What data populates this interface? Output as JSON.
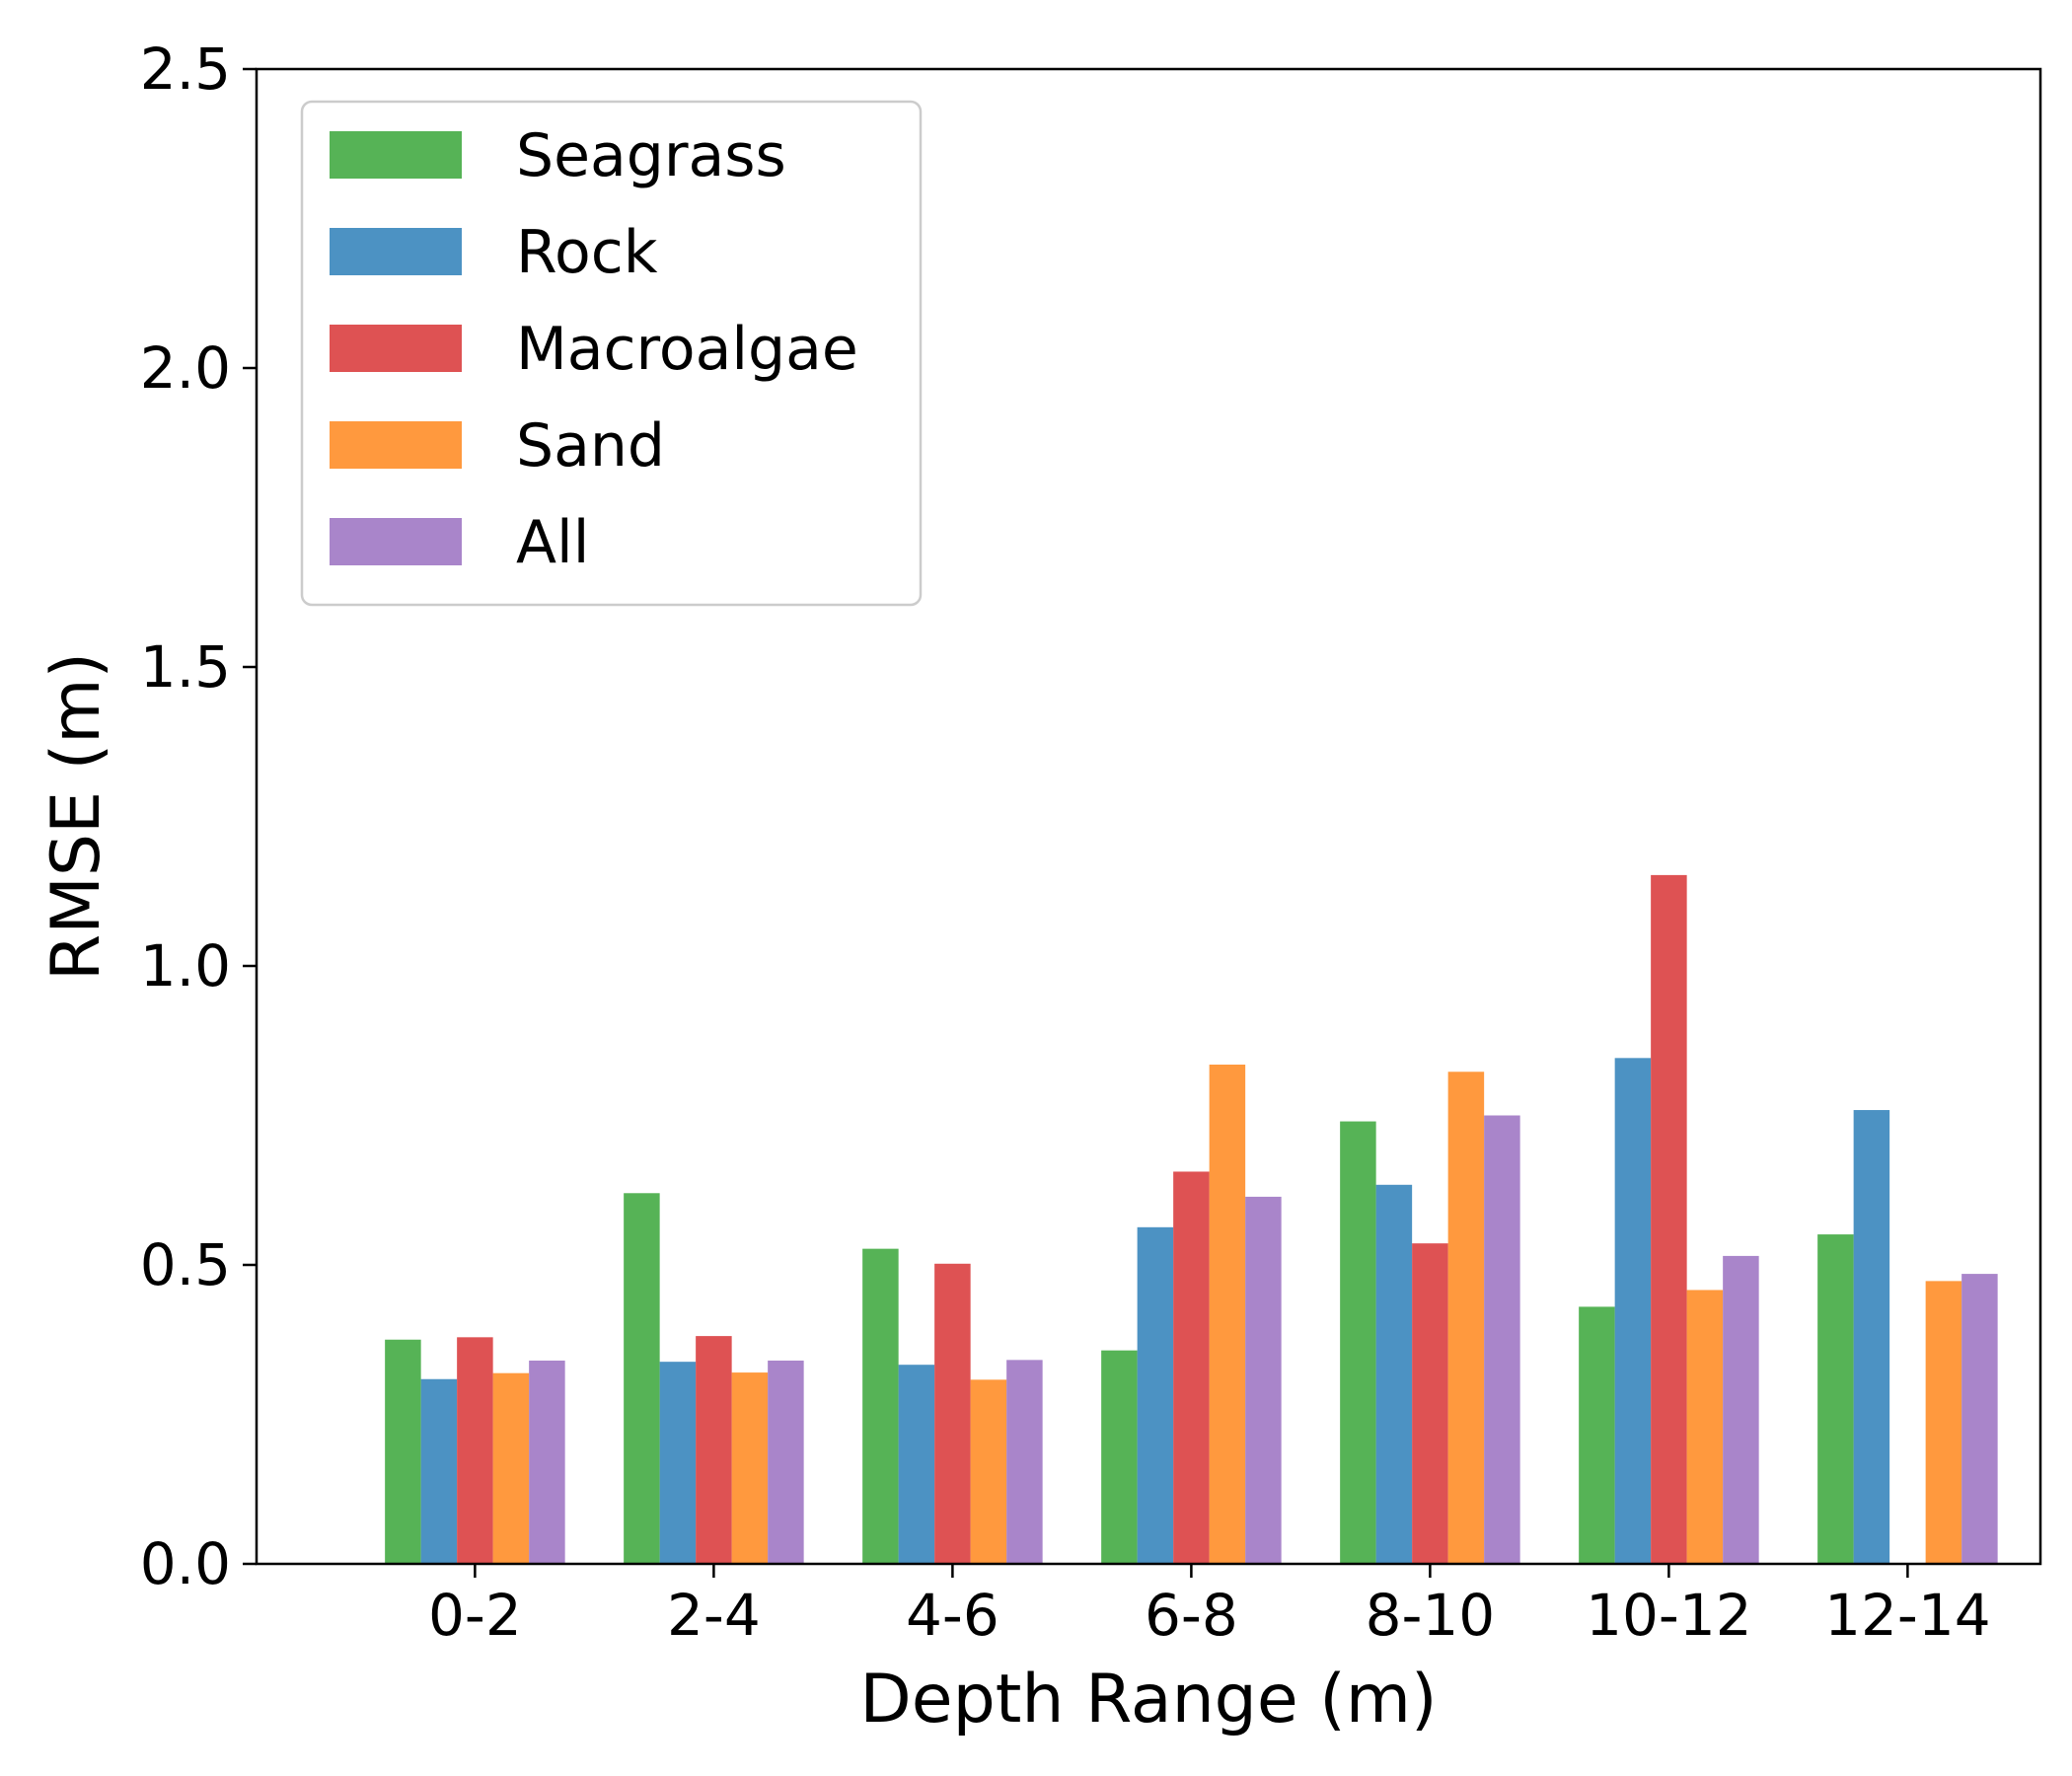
{
  "chart_data": {
    "type": "bar",
    "title": "",
    "xlabel": "Depth Range (m)",
    "ylabel": "RMSE (m)",
    "ylim": [
      0,
      2.5
    ],
    "yticks": [
      "0.0",
      "0.5",
      "1.0",
      "1.5",
      "2.0",
      "2.5"
    ],
    "ytick_values": [
      0,
      0.5,
      1.0,
      1.5,
      2.0,
      2.5
    ],
    "categories": [
      "0-2",
      "2-4",
      "4-6",
      "6-8",
      "8-10",
      "10-12",
      "12-14"
    ],
    "series": [
      {
        "name": "Seagrass",
        "color": "#2ca02c",
        "values": [
          0.375,
          0.62,
          0.527,
          0.357,
          0.74,
          0.43,
          0.551
        ]
      },
      {
        "name": "Rock",
        "color": "#1f77b4",
        "values": [
          0.309,
          0.338,
          0.333,
          0.563,
          0.634,
          0.846,
          0.759
        ]
      },
      {
        "name": "Macroalgae",
        "color": "#d62728",
        "values": [
          0.379,
          0.381,
          0.502,
          0.656,
          0.536,
          1.152,
          null
        ]
      },
      {
        "name": "Sand",
        "color": "#ff7f0e",
        "values": [
          0.319,
          0.32,
          0.308,
          0.835,
          0.823,
          0.458,
          0.473
        ]
      },
      {
        "name": "All",
        "color": "#9467bd",
        "values": [
          0.34,
          0.34,
          0.341,
          0.614,
          0.75,
          0.515,
          0.485
        ]
      }
    ],
    "legend_position": "top-left",
    "grid": false
  }
}
